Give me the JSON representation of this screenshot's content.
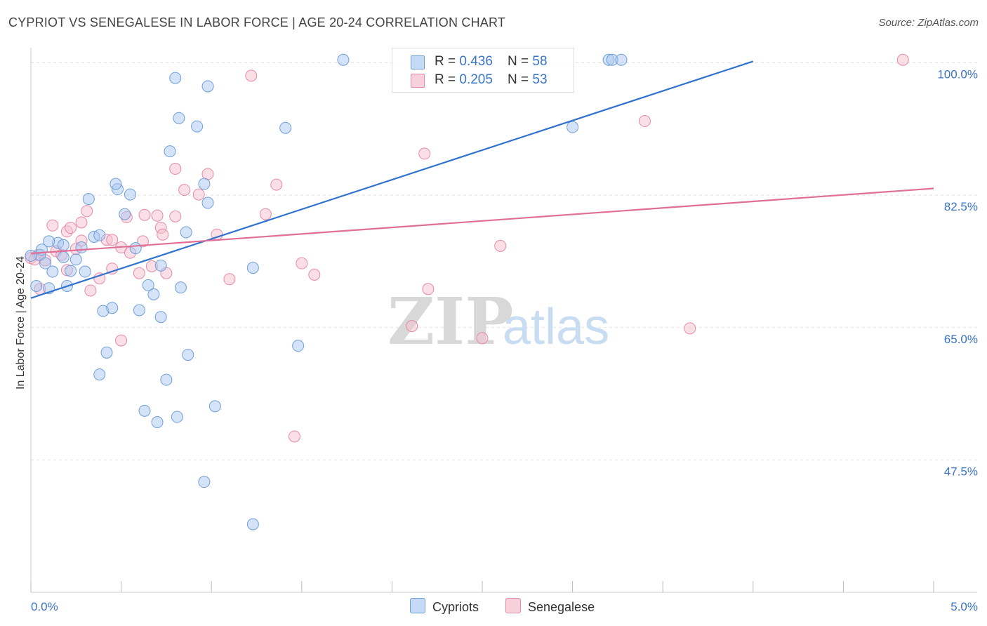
{
  "header": {
    "title": "CYPRIOT VS SENEGALESE IN LABOR FORCE | AGE 20-24 CORRELATION CHART",
    "source": "Source: ZipAtlas.com"
  },
  "watermark": {
    "zip": "ZIP",
    "atlas": "atlas"
  },
  "legend": {
    "rows": [
      {
        "r_label": "R = ",
        "r_value": "0.436",
        "n_label": "N = ",
        "n_value": "58",
        "color": "#a9c8f0",
        "border": "#6f9fd8"
      },
      {
        "r_label": "R = ",
        "r_value": "0.205",
        "n_label": "N = ",
        "n_value": "53",
        "color": "#f6c0d0",
        "border": "#e58aa8"
      }
    ]
  },
  "bottom_legend": [
    "Cypriots",
    "Senegalese"
  ],
  "chart_data": {
    "type": "scatter",
    "title": "CYPRIOT VS SENEGALESE IN LABOR FORCE | AGE 20-24 CORRELATION CHART",
    "xlabel": "",
    "ylabel": "In Labor Force | Age 20-24",
    "xlim": [
      0,
      5
    ],
    "ylim": [
      30,
      102
    ],
    "x_tick_labels": [
      "0.0%",
      "5.0%"
    ],
    "y_ticks": [
      47.5,
      65.0,
      82.5,
      100.0
    ],
    "y_tick_labels": [
      "47.5%",
      "65.0%",
      "82.5%",
      "100.0%"
    ],
    "grid": true,
    "legend_position": "top-center",
    "series": [
      {
        "name": "Cypriots",
        "color": "#a9c8f0",
        "stroke": "#6f9fd8",
        "line_color": "#2f72d0",
        "trend": {
          "x": [
            0.0,
            4.0
          ],
          "y": [
            68.9,
            100.2
          ]
        },
        "points": [
          [
            0.05,
            74.6
          ],
          [
            0.08,
            73.5
          ],
          [
            0.1,
            70.2
          ],
          [
            0.12,
            72.4
          ],
          [
            0.15,
            76.2
          ],
          [
            0.18,
            74.3
          ],
          [
            0.2,
            70.5
          ],
          [
            0.22,
            72.5
          ],
          [
            0.1,
            76.4
          ],
          [
            0.18,
            75.9
          ],
          [
            0.28,
            75.6
          ],
          [
            0.25,
            74.0
          ],
          [
            0.3,
            72.4
          ],
          [
            0.35,
            77.0
          ],
          [
            0.32,
            82.0
          ],
          [
            0.38,
            77.2
          ],
          [
            0.4,
            67.2
          ],
          [
            0.42,
            61.7
          ],
          [
            0.45,
            67.6
          ],
          [
            0.38,
            58.8
          ],
          [
            0.48,
            83.3
          ],
          [
            0.52,
            80.0
          ],
          [
            0.47,
            84.0
          ],
          [
            0.55,
            82.6
          ],
          [
            0.6,
            67.3
          ],
          [
            0.63,
            54.0
          ],
          [
            0.58,
            75.5
          ],
          [
            0.68,
            69.4
          ],
          [
            0.72,
            73.2
          ],
          [
            0.65,
            70.6
          ],
          [
            0.7,
            52.5
          ],
          [
            0.75,
            58.1
          ],
          [
            0.72,
            66.4
          ],
          [
            0.81,
            53.2
          ],
          [
            0.83,
            70.3
          ],
          [
            0.87,
            61.4
          ],
          [
            0.86,
            77.6
          ],
          [
            0.77,
            88.3
          ],
          [
            0.8,
            98.0
          ],
          [
            0.82,
            92.7
          ],
          [
            0.92,
            91.6
          ],
          [
            0.98,
            96.9
          ],
          [
            0.96,
            84.0
          ],
          [
            0.98,
            81.5
          ],
          [
            1.02,
            54.6
          ],
          [
            0.96,
            44.6
          ],
          [
            1.23,
            72.9
          ],
          [
            1.23,
            39.0
          ],
          [
            1.41,
            91.4
          ],
          [
            1.48,
            62.6
          ],
          [
            1.73,
            100.4
          ],
          [
            3.0,
            91.5
          ],
          [
            3.2,
            100.4
          ],
          [
            3.22,
            100.4
          ],
          [
            3.27,
            100.4
          ],
          [
            0.0,
            74.5
          ],
          [
            0.03,
            70.5
          ],
          [
            0.06,
            75.3
          ]
        ]
      },
      {
        "name": "Senegalese",
        "color": "#f6c0d0",
        "stroke": "#e58aa8",
        "line_color": "#e06f98",
        "trend": {
          "x": [
            0.0,
            5.0
          ],
          "y": [
            74.8,
            83.4
          ]
        },
        "points": [
          [
            0.0,
            74.2
          ],
          [
            0.04,
            74.6
          ],
          [
            0.05,
            70.1
          ],
          [
            0.08,
            73.9
          ],
          [
            0.12,
            78.5
          ],
          [
            0.14,
            75.1
          ],
          [
            0.17,
            74.6
          ],
          [
            0.2,
            72.6
          ],
          [
            0.2,
            77.7
          ],
          [
            0.22,
            78.2
          ],
          [
            0.25,
            75.4
          ],
          [
            0.28,
            76.5
          ],
          [
            0.28,
            78.9
          ],
          [
            0.31,
            80.4
          ],
          [
            0.33,
            69.9
          ],
          [
            0.38,
            71.5
          ],
          [
            0.42,
            76.6
          ],
          [
            0.45,
            76.6
          ],
          [
            0.45,
            72.8
          ],
          [
            0.5,
            75.6
          ],
          [
            0.5,
            63.3
          ],
          [
            0.53,
            79.6
          ],
          [
            0.55,
            74.9
          ],
          [
            0.6,
            72.2
          ],
          [
            0.62,
            76.4
          ],
          [
            0.63,
            79.9
          ],
          [
            0.67,
            73.1
          ],
          [
            0.7,
            79.8
          ],
          [
            0.72,
            78.2
          ],
          [
            0.73,
            77.3
          ],
          [
            0.75,
            72.2
          ],
          [
            0.8,
            79.7
          ],
          [
            0.8,
            86.0
          ],
          [
            0.85,
            83.2
          ],
          [
            0.93,
            82.6
          ],
          [
            0.98,
            85.3
          ],
          [
            1.03,
            77.3
          ],
          [
            1.1,
            71.4
          ],
          [
            1.22,
            98.3
          ],
          [
            1.3,
            80.0
          ],
          [
            1.36,
            83.9
          ],
          [
            1.46,
            50.6
          ],
          [
            1.5,
            73.5
          ],
          [
            1.57,
            72.0
          ],
          [
            2.11,
            65.2
          ],
          [
            2.18,
            88.0
          ],
          [
            2.2,
            70.1
          ],
          [
            2.5,
            63.6
          ],
          [
            2.6,
            75.8
          ],
          [
            3.4,
            92.3
          ],
          [
            3.65,
            64.9
          ],
          [
            4.83,
            100.4
          ],
          [
            0.02,
            74.0
          ]
        ]
      }
    ]
  }
}
